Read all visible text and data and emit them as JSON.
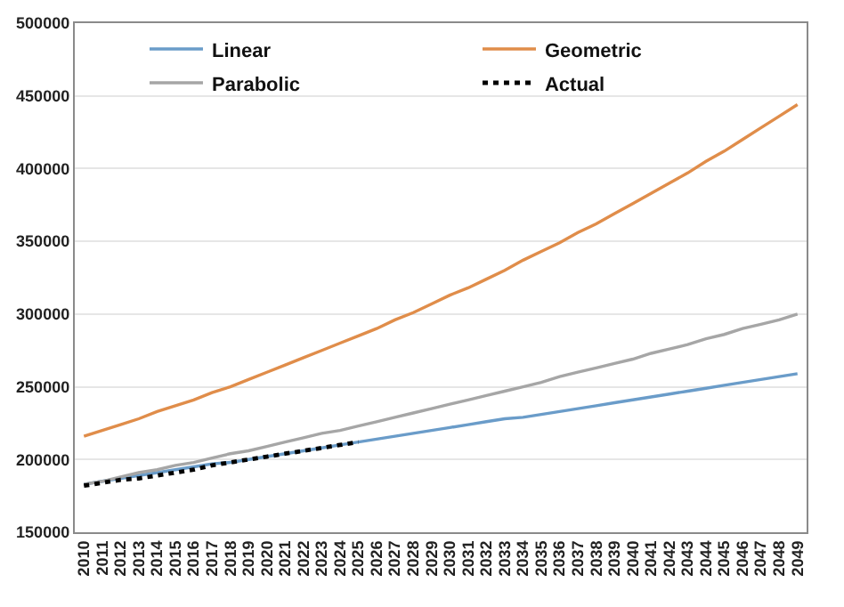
{
  "chart_data": {
    "type": "line",
    "categories": [
      "2010",
      "2011",
      "2012",
      "2013",
      "2014",
      "2015",
      "2016",
      "2017",
      "2018",
      "2019",
      "2020",
      "2021",
      "2022",
      "2023",
      "2024",
      "2025",
      "2026",
      "2027",
      "2028",
      "2029",
      "2030",
      "2031",
      "2032",
      "2033",
      "2034",
      "2035",
      "2036",
      "2037",
      "2038",
      "2039",
      "2040",
      "2041",
      "2042",
      "2043",
      "2044",
      "2045",
      "2046",
      "2047",
      "2048",
      "2049"
    ],
    "series": [
      {
        "name": "Linear",
        "color": "#6a9cc9",
        "values": [
          183000,
          185000,
          187000,
          189000,
          191000,
          193000,
          195000,
          197000,
          198000,
          200000,
          202000,
          204000,
          206000,
          208000,
          210000,
          212000,
          214000,
          216000,
          218000,
          220000,
          222000,
          224000,
          226000,
          228000,
          229000,
          231000,
          233000,
          235000,
          237000,
          239000,
          241000,
          243000,
          245000,
          247000,
          249000,
          251000,
          253000,
          255000,
          257000,
          259000
        ]
      },
      {
        "name": "Geometric",
        "color": "#e08d4a",
        "values": [
          216000,
          220000,
          224000,
          228000,
          233000,
          237000,
          241000,
          246000,
          250000,
          255000,
          260000,
          265000,
          270000,
          275000,
          280000,
          285000,
          290000,
          296000,
          301000,
          307000,
          313000,
          318000,
          324000,
          330000,
          337000,
          343000,
          349000,
          356000,
          362000,
          369000,
          376000,
          383000,
          390000,
          397000,
          405000,
          412000,
          420000,
          428000,
          436000,
          444000
        ]
      },
      {
        "name": "Parabolic",
        "color": "#a6a6a6",
        "values": [
          183000,
          185000,
          188000,
          191000,
          193000,
          196000,
          198000,
          201000,
          204000,
          206000,
          209000,
          212000,
          215000,
          218000,
          220000,
          223000,
          226000,
          229000,
          232000,
          235000,
          238000,
          241000,
          244000,
          247000,
          250000,
          253000,
          257000,
          260000,
          263000,
          266000,
          269000,
          273000,
          276000,
          279000,
          283000,
          286000,
          290000,
          293000,
          296000,
          300000
        ]
      },
      {
        "name": "Actual",
        "color": "#000000",
        "line_style": "dotted",
        "values": [
          182000,
          184000,
          186000,
          187000,
          189000,
          191000,
          193000,
          196000,
          198000,
          200000,
          202000,
          204000,
          206000,
          208000,
          210000,
          212000,
          null,
          null,
          null,
          null,
          null,
          null,
          null,
          null,
          null,
          null,
          null,
          null,
          null,
          null,
          null,
          null,
          null,
          null,
          null,
          null,
          null,
          null,
          null,
          null
        ]
      }
    ],
    "ylim": [
      150000,
      500000
    ],
    "yticks": [
      150000,
      200000,
      250000,
      300000,
      350000,
      400000,
      450000,
      500000
    ],
    "grid": "y",
    "legend": "top"
  }
}
